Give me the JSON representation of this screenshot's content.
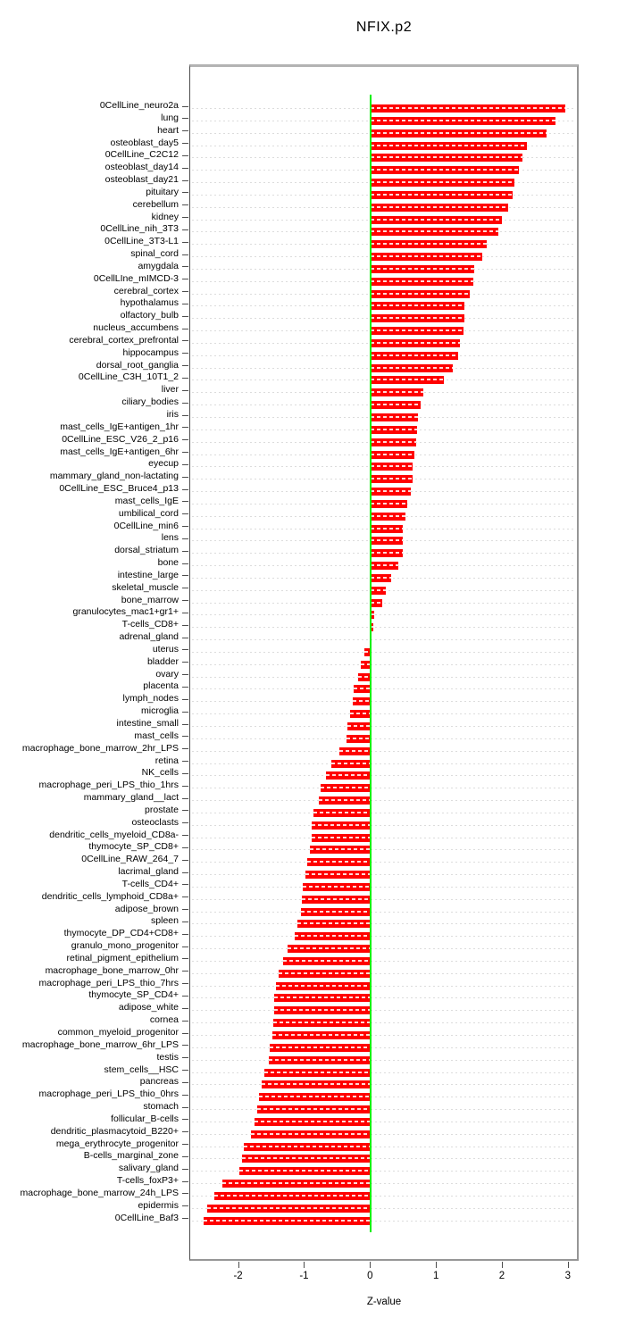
{
  "title": "NFIX.p2",
  "chart_data": {
    "type": "bar",
    "orientation": "horizontal",
    "title": "NFIX.p2",
    "xlabel": "Z-value",
    "ylabel": "",
    "x_ticks": [
      -2,
      -1,
      0,
      1,
      2,
      3
    ],
    "xlim": [
      -2.74,
      3.17
    ],
    "grid": true,
    "legend": "none",
    "bar_color": "#ff0000",
    "zero_line_color": "#00f000",
    "categories": [
      "0CellLine_neuro2a",
      "lung",
      "heart",
      "osteoblast_day5",
      "0CellLine_C2C12",
      "osteoblast_day14",
      "osteoblast_day21",
      "pituitary",
      "cerebellum",
      "kidney",
      "0CellLine_nih_3T3",
      "0CellLine_3T3-L1",
      "spinal_cord",
      "amygdala",
      "0CellLIne_mIMCD-3",
      "cerebral_cortex",
      "hypothalamus",
      "olfactory_bulb",
      "nucleus_accumbens",
      "cerebral_cortex_prefrontal",
      "hippocampus",
      "dorsal_root_ganglia",
      "0CellLine_C3H_10T1_2",
      "liver",
      "ciliary_bodies",
      "iris",
      "mast_cells_IgE+antigen_1hr",
      "0CellLine_ESC_V26_2_p16",
      "mast_cells_IgE+antigen_6hr",
      "eyecup",
      "mammary_gland_non-lactating",
      "0CellLine_ESC_Bruce4_p13",
      "mast_cells_IgE",
      "umbilical_cord",
      "0CellLine_min6",
      "lens",
      "dorsal_striatum",
      "bone",
      "intestine_large",
      "skeletal_muscle",
      "bone_marrow",
      "granulocytes_mac1+gr1+",
      "T-cells_CD8+",
      "adrenal_gland",
      "uterus",
      "bladder",
      "ovary",
      "placenta",
      "lymph_nodes",
      "microglia",
      "intestine_small",
      "mast_cells",
      "macrophage_bone_marrow_2hr_LPS",
      "retina",
      "NK_cells",
      "macrophage_peri_LPS_thio_1hrs",
      "mammary_gland__lact",
      "prostate",
      "osteoclasts",
      "dendritic_cells_myeloid_CD8a-",
      "thymocyte_SP_CD8+",
      "0CellLine_RAW_264_7",
      "lacrimal_gland",
      "T-cells_CD4+",
      "dendritic_cells_lymphoid_CD8a+",
      "adipose_brown",
      "spleen",
      "thymocyte_DP_CD4+CD8+",
      "granulo_mono_progenitor",
      "retinal_pigment_epithelium",
      "macrophage_bone_marrow_0hr",
      "macrophage_peri_LPS_thio_7hrs",
      "thymocyte_SP_CD4+",
      "adipose_white",
      "cornea",
      "common_myeloid_progenitor",
      "macrophage_bone_marrow_6hr_LPS",
      "testis",
      "stem_cells__HSC",
      "pancreas",
      "macrophage_peri_LPS_thio_0hrs",
      "stomach",
      "follicular_B-cells",
      "dendritic_plasmacytoid_B220+",
      "mega_erythrocyte_progenitor",
      "B-cells_marginal_zone",
      "salivary_gland",
      "T-cells_foxP3+",
      "macrophage_bone_marrow_24h_LPS",
      "epidermis",
      "0CellLine_Baf3"
    ],
    "values": [
      2.95,
      2.8,
      2.66,
      2.37,
      2.3,
      2.25,
      2.17,
      2.15,
      2.08,
      1.98,
      1.93,
      1.76,
      1.69,
      1.57,
      1.55,
      1.5,
      1.42,
      1.42,
      1.41,
      1.35,
      1.32,
      1.24,
      1.1,
      0.79,
      0.75,
      0.72,
      0.7,
      0.69,
      0.66,
      0.63,
      0.63,
      0.61,
      0.55,
      0.52,
      0.49,
      0.48,
      0.48,
      0.41,
      0.31,
      0.22,
      0.17,
      0.05,
      0.03,
      0.01,
      -0.1,
      -0.15,
      -0.19,
      -0.26,
      -0.28,
      -0.31,
      -0.36,
      -0.37,
      -0.48,
      -0.6,
      -0.68,
      -0.76,
      -0.79,
      -0.87,
      -0.9,
      -0.9,
      -0.93,
      -0.97,
      -0.99,
      -1.03,
      -1.05,
      -1.06,
      -1.12,
      -1.15,
      -1.27,
      -1.33,
      -1.4,
      -1.44,
      -1.46,
      -1.47,
      -1.48,
      -1.49,
      -1.54,
      -1.55,
      -1.61,
      -1.65,
      -1.7,
      -1.73,
      -1.76,
      -1.82,
      -1.93,
      -1.96,
      -1.99,
      -2.25,
      -2.37,
      -2.48,
      -2.54
    ]
  }
}
